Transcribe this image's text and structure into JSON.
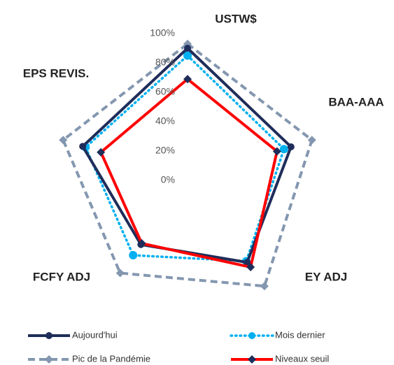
{
  "chart_data": {
    "type": "radar",
    "categories": [
      "USTW$",
      "BAA-AAA",
      "EY ADJ",
      "FCFY ADJ",
      "EPS REVIS."
    ],
    "ylim": [
      0,
      100
    ],
    "yticks": [
      {
        "value": 0,
        "label": "0%"
      },
      {
        "value": 20,
        "label": "20%"
      },
      {
        "value": 40,
        "label": "40%"
      },
      {
        "value": 60,
        "label": "60%"
      },
      {
        "value": 80,
        "label": "80%"
      },
      {
        "value": 100,
        "label": "100%"
      }
    ],
    "series": [
      {
        "name": "Aujourd'hui",
        "color": "#1f2d5a",
        "style": "solid",
        "marker": "circle",
        "values": [
          90,
          74,
          69,
          54,
          75
        ]
      },
      {
        "name": "Mois dernier",
        "color": "#00b0f0",
        "style": "dotted",
        "marker": "circle",
        "values": [
          85,
          69,
          68,
          63,
          73
        ]
      },
      {
        "name": "Pic de la Pandémie",
        "color": "#8497b0",
        "style": "dashed",
        "marker": "diamond",
        "values": [
          93,
          89,
          89,
          78,
          89
        ]
      },
      {
        "name": "Niveaux seuil",
        "color": "#ff0000",
        "style": "solid",
        "marker": "diamond",
        "values": [
          69,
          64,
          73,
          53,
          62
        ]
      }
    ]
  }
}
